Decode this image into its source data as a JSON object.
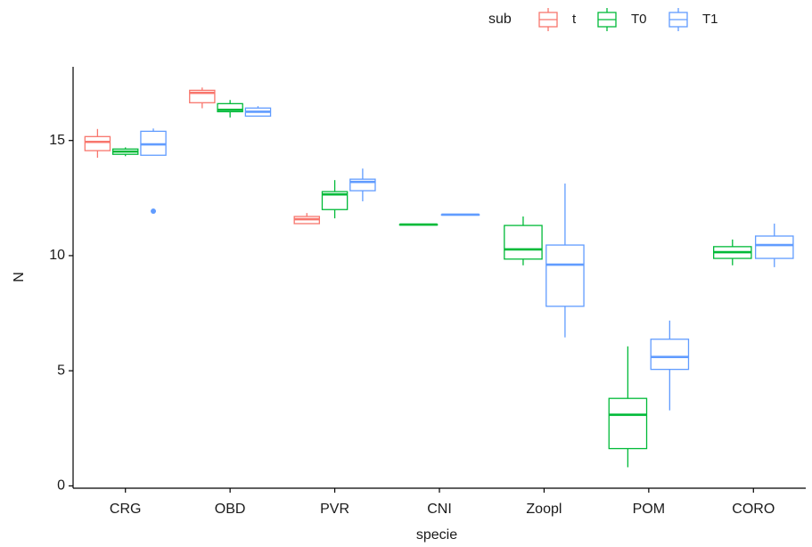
{
  "chart_data": {
    "type": "box",
    "categories": [
      "CRG",
      "OBD",
      "PVR",
      "CNI",
      "Zoopl",
      "POM",
      "CORO"
    ],
    "x_label": "specie",
    "y_label": "N",
    "legend_title": "sub",
    "legend_position": "top-right",
    "ylim": [
      -0.1,
      18.2
    ],
    "yticks": [
      0,
      5,
      10,
      15
    ],
    "grid": false,
    "series": [
      {
        "name": "t",
        "color": "#F8766D",
        "values": [
          {
            "min": 14.25,
            "q1": 14.56,
            "median": 14.94,
            "q3": 15.17,
            "max": 15.5
          },
          {
            "min": 16.4,
            "q1": 16.64,
            "median": 17.07,
            "q3": 17.18,
            "max": 17.3
          },
          {
            "min": 11.39,
            "q1": 11.39,
            "median": 11.58,
            "q3": 11.7,
            "max": 11.85
          },
          null,
          null,
          null,
          null
        ]
      },
      {
        "name": "T0",
        "color": "#00BA38",
        "values": [
          {
            "min": 14.32,
            "q1": 14.4,
            "median": 14.52,
            "q3": 14.63,
            "max": 14.7
          },
          {
            "min": 16.0,
            "q1": 16.25,
            "median": 16.33,
            "q3": 16.6,
            "max": 16.76
          },
          {
            "min": 11.62,
            "q1": 12.0,
            "median": 12.66,
            "q3": 12.78,
            "max": 13.28
          },
          {
            "min": 11.35,
            "q1": 11.35,
            "median": 11.35,
            "q3": 11.35,
            "max": 11.35
          },
          {
            "min": 9.58,
            "q1": 9.85,
            "median": 10.27,
            "q3": 11.31,
            "max": 11.7
          },
          {
            "min": 0.81,
            "q1": 1.62,
            "median": 3.09,
            "q3": 3.8,
            "max": 6.06
          },
          {
            "min": 9.58,
            "q1": 9.88,
            "median": 10.15,
            "q3": 10.39,
            "max": 10.7
          }
        ]
      },
      {
        "name": "T1",
        "color": "#619CFF",
        "values": [
          {
            "min": 14.36,
            "q1": 14.36,
            "median": 14.83,
            "q3": 15.4,
            "max": 15.52,
            "outliers": [
              11.93
            ]
          },
          {
            "min": 16.06,
            "q1": 16.06,
            "median": 16.25,
            "q3": 16.41,
            "max": 16.49
          },
          {
            "min": 12.36,
            "q1": 12.82,
            "median": 13.2,
            "q3": 13.32,
            "max": 13.78
          },
          {
            "min": 11.78,
            "q1": 11.78,
            "median": 11.78,
            "q3": 11.78,
            "max": 11.78
          },
          {
            "min": 6.45,
            "q1": 7.8,
            "median": 9.61,
            "q3": 10.46,
            "max": 13.13
          },
          {
            "min": 3.28,
            "q1": 5.06,
            "median": 5.6,
            "q3": 6.37,
            "max": 7.18
          },
          {
            "min": 9.5,
            "q1": 9.88,
            "median": 10.46,
            "q3": 10.85,
            "max": 11.39
          }
        ]
      }
    ]
  }
}
